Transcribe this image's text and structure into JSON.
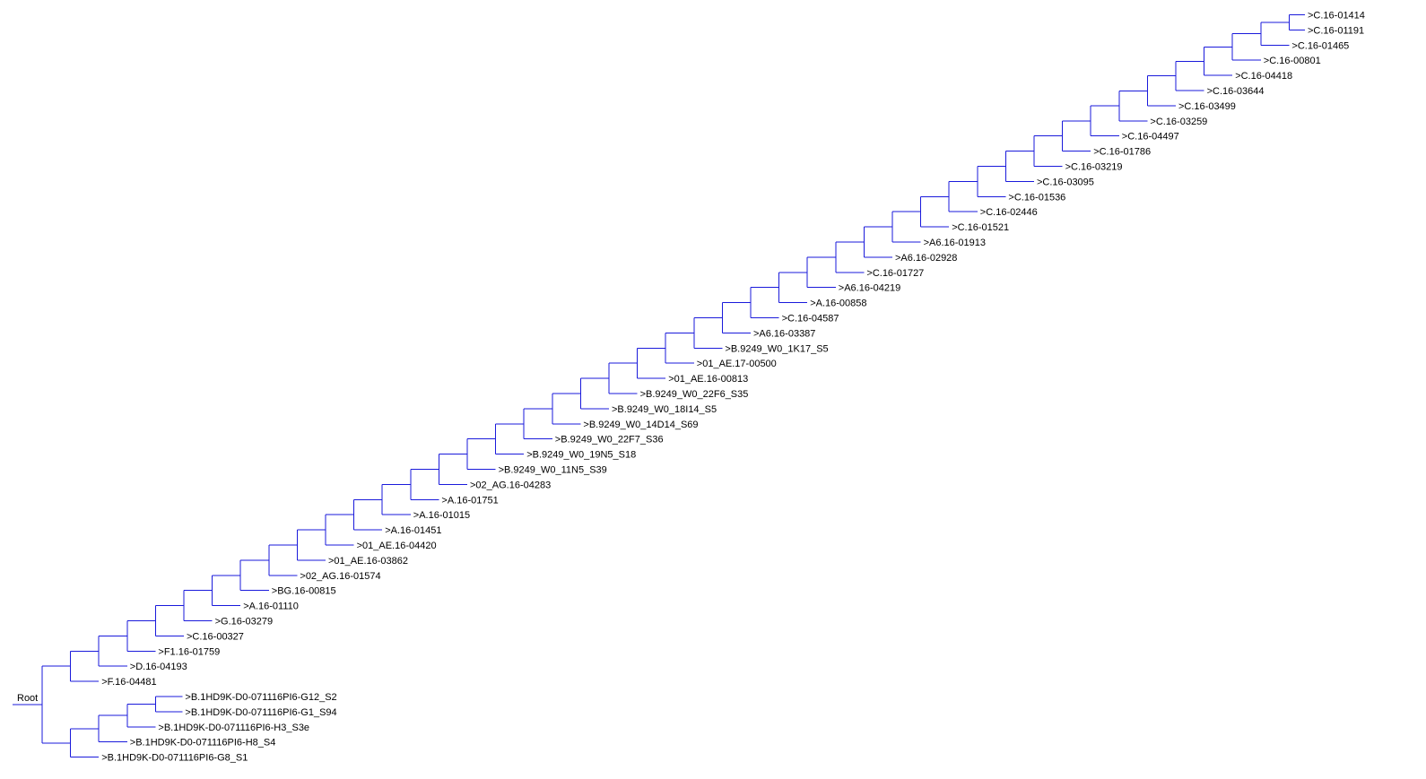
{
  "root_label": "Root",
  "colors": {
    "branch": "#1a1adb",
    "label": "#000000",
    "background": "#ffffff"
  },
  "leaves": [
    ">C.16-01414",
    ">C.16-01191",
    ">C.16-01465",
    ">C.16-00801",
    ">C.16-04418",
    ">C.16-03644",
    ">C.16-03499",
    ">C.16-03259",
    ">C.16-04497",
    ">C.16-01786",
    ">C.16-03219",
    ">C.16-03095",
    ">C.16-01536",
    ">C.16-02446",
    ">C.16-01521",
    ">A6.16-01913",
    ">A6.16-02928",
    ">C.16-01727",
    ">A6.16-04219",
    ">A.16-00858",
    ">C.16-04587",
    ">A6.16-03387",
    ">B.9249_W0_1K17_S5",
    ">01_AE.17-00500",
    ">01_AE.16-00813",
    ">B.9249_W0_22F6_S35",
    ">B.9249_W0_18I14_S5",
    ">B.9249_W0_14D14_S69",
    ">B.9249_W0_22F7_S36",
    ">B.9249_W0_19N5_S18",
    ">B.9249_W0_11N5_S39",
    ">02_AG.16-04283",
    ">A.16-01751",
    ">A.16-01015",
    ">A.16-01451",
    ">01_AE.16-04420",
    ">01_AE.16-03862",
    ">02_AG.16-01574",
    ">BG.16-00815",
    ">A.16-01110",
    ">G.16-03279",
    ">C.16-00327",
    ">F1.16-01759",
    ">D.16-04193",
    ">F.16-04481",
    ">B.1HD9K-D0-071116PI6-G12_S2",
    ">B.1HD9K-D0-071116PI6-G1_S94",
    ">B.1HD9K-D0-071116PI6-H3_S3e",
    ">B.1HD9K-D0-071116PI6-H8_S4",
    ">B.1HD9K-D0-071116PI6-G8_S1"
  ]
}
